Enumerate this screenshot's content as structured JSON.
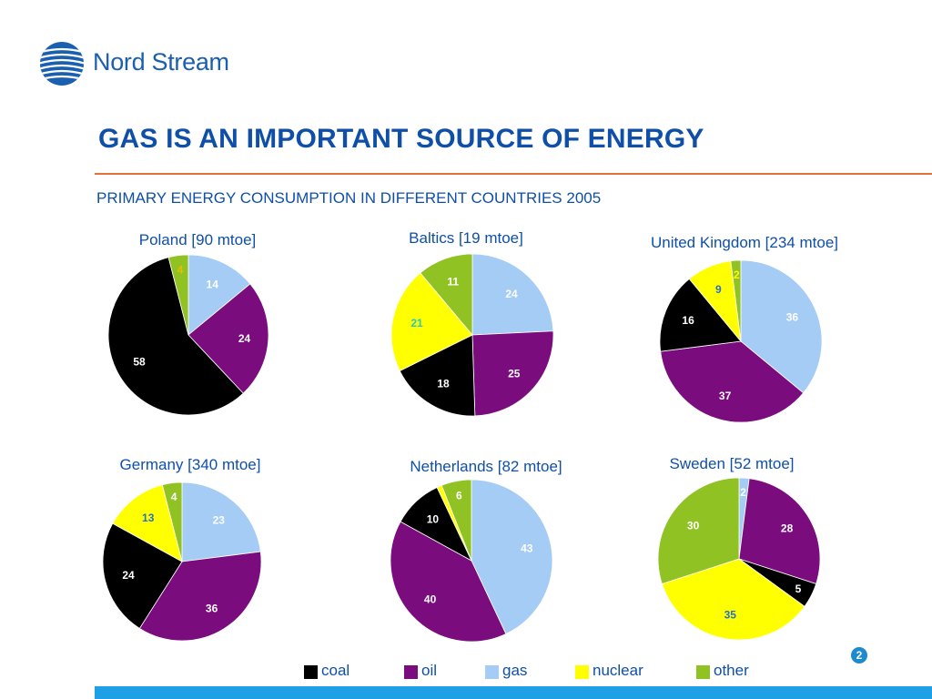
{
  "brand": {
    "name": "Nord Stream"
  },
  "title": "GAS IS AN IMPORTANT SOURCE OF ENERGY",
  "subtitle": "PRIMARY ENERGY CONSUMPTION IN DIFFERENT COUNTRIES 2005",
  "page_number": "2",
  "colors": {
    "coal": "#000000",
    "oil": "#7a0c7d",
    "gas": "#a4ccf5",
    "nuclear": "#ffff00",
    "other": "#90c224",
    "title": "#0f4fa8",
    "rule": "#e2703a",
    "bar": "#1ea0e6"
  },
  "legend": [
    {
      "key": "coal",
      "label": "coal"
    },
    {
      "key": "oil",
      "label": "oil"
    },
    {
      "key": "gas",
      "label": "gas"
    },
    {
      "key": "nuclear",
      "label": "nuclear"
    },
    {
      "key": "other",
      "label": "other"
    }
  ],
  "chart_data": [
    {
      "type": "pie",
      "title": "Poland [90 mtoe]",
      "slices": [
        {
          "category": "gas",
          "value": 14
        },
        {
          "category": "oil",
          "value": 24
        },
        {
          "category": "coal",
          "value": 58
        },
        {
          "category": "nuclear",
          "value": 0
        },
        {
          "category": "other",
          "value": 4
        }
      ]
    },
    {
      "type": "pie",
      "title": "Baltics [19 mtoe]",
      "slices": [
        {
          "category": "gas",
          "value": 24
        },
        {
          "category": "oil",
          "value": 25
        },
        {
          "category": "coal",
          "value": 18
        },
        {
          "category": "nuclear",
          "value": 21
        },
        {
          "category": "other",
          "value": 11
        }
      ]
    },
    {
      "type": "pie",
      "title": "United Kingdom [234 mtoe]",
      "slices": [
        {
          "category": "gas",
          "value": 36
        },
        {
          "category": "oil",
          "value": 37
        },
        {
          "category": "coal",
          "value": 16
        },
        {
          "category": "nuclear",
          "value": 9
        },
        {
          "category": "other",
          "value": 2
        }
      ]
    },
    {
      "type": "pie",
      "title": "Germany [340 mtoe]",
      "slices": [
        {
          "category": "gas",
          "value": 23
        },
        {
          "category": "oil",
          "value": 36
        },
        {
          "category": "coal",
          "value": 24
        },
        {
          "category": "nuclear",
          "value": 13
        },
        {
          "category": "other",
          "value": 4
        }
      ]
    },
    {
      "type": "pie",
      "title": "Netherlands [82 mtoe]",
      "slices": [
        {
          "category": "gas",
          "value": 43
        },
        {
          "category": "oil",
          "value": 40
        },
        {
          "category": "coal",
          "value": 10
        },
        {
          "category": "nuclear",
          "value": 1
        },
        {
          "category": "other",
          "value": 6
        }
      ]
    },
    {
      "type": "pie",
      "title": "Sweden [52 mtoe]",
      "slices": [
        {
          "category": "gas",
          "value": 2
        },
        {
          "category": "oil",
          "value": 28
        },
        {
          "category": "coal",
          "value": 5
        },
        {
          "category": "nuclear",
          "value": 35
        },
        {
          "category": "other",
          "value": 30
        }
      ]
    }
  ]
}
